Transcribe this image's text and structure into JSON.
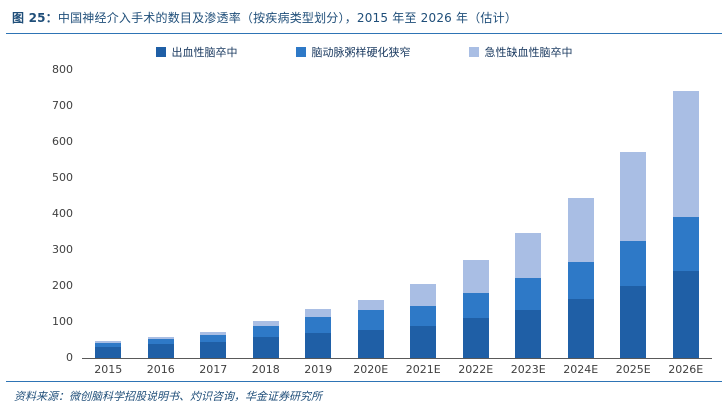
{
  "title": {
    "prefix": "图 25：",
    "text": "中国神经介入手术的数目及渗透率（按疾病类型划分），2015 年至 2026 年（估计）"
  },
  "footer": {
    "source": "资料来源：微创脑科学招股说明书、灼识咨询，华金证券研究所"
  },
  "colors": {
    "title_text": "#1F4E79",
    "divider_line": "#2E74B5",
    "axis_text": "#404040",
    "series_hemorrhagic": "#1F5FA6",
    "series_stenosis": "#2E79C7",
    "series_ischemic": "#A9BEE4"
  },
  "chart_data": {
    "type": "bar",
    "stacked": true,
    "title": "中国神经介入手术的数目及渗透率（按疾病类型划分），2015 年至 2026 年（估计）",
    "categories": [
      "2015",
      "2016",
      "2017",
      "2018",
      "2019",
      "2020E",
      "2021E",
      "2022E",
      "2023E",
      "2024E",
      "2025E",
      "2026E"
    ],
    "series": [
      {
        "name": "出血性脑卒中",
        "color": "#1F5FA6",
        "values": [
          30,
          38,
          45,
          57,
          70,
          78,
          90,
          110,
          133,
          163,
          200,
          243
        ]
      },
      {
        "name": "脑动脉粥样硬化狭窄",
        "color": "#2E79C7",
        "values": [
          12,
          15,
          20,
          31,
          45,
          55,
          55,
          72,
          88,
          105,
          125,
          150
        ]
      },
      {
        "name": "急性缺血性脑卒中",
        "color": "#A9BEE4",
        "values": [
          4,
          6,
          8,
          15,
          20,
          29,
          60,
          90,
          127,
          177,
          248,
          348
        ]
      }
    ],
    "xlabel": "",
    "ylabel": "",
    "ylim": [
      0,
      800
    ],
    "ytick_step": 100,
    "grid": false,
    "legend_position": "top"
  }
}
